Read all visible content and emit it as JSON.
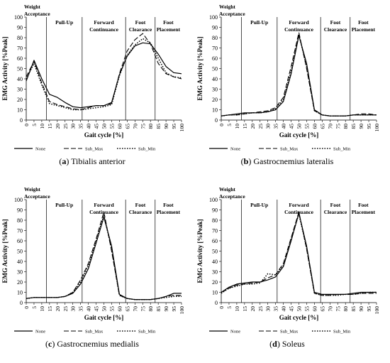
{
  "chart_data": [
    {
      "type": "line",
      "caption_letter": "a",
      "caption_text": "Tibialis anterior",
      "xlabel": "Gait cycle [%]",
      "ylabel": "EMG Activity [%Peak]",
      "xlim": [
        0,
        100
      ],
      "ylim": [
        0,
        100
      ],
      "xticks": [
        0,
        5,
        10,
        15,
        20,
        25,
        30,
        35,
        40,
        45,
        50,
        55,
        60,
        65,
        70,
        75,
        80,
        85,
        90,
        95,
        100
      ],
      "yticks": [
        0,
        10,
        20,
        30,
        40,
        50,
        60,
        70,
        80,
        90,
        100
      ],
      "phases": [
        {
          "label": [
            "Weight",
            "Acceptance"
          ],
          "start": 0,
          "end": 13
        },
        {
          "label": [
            "Pull-Up"
          ],
          "start": 13,
          "end": 36
        },
        {
          "label": [
            "Forward",
            "Continuance"
          ],
          "start": 36,
          "end": 64
        },
        {
          "label": [
            "Foot",
            "Clearance"
          ],
          "start": 64,
          "end": 83
        },
        {
          "label": [
            "Foot",
            "Placement"
          ],
          "start": 83,
          "end": 100
        }
      ],
      "x": [
        0,
        5,
        10,
        15,
        20,
        25,
        30,
        35,
        40,
        45,
        50,
        55,
        60,
        65,
        70,
        75,
        80,
        85,
        90,
        95,
        100
      ],
      "series": [
        {
          "name": "None",
          "values": [
            38,
            58,
            40,
            25,
            22,
            17,
            13,
            12,
            13,
            14,
            14,
            17,
            44,
            62,
            72,
            75,
            74,
            64,
            52,
            46,
            45
          ]
        },
        {
          "name": "Sub_Max",
          "values": [
            42,
            57,
            36,
            18,
            15,
            13,
            11,
            10,
            12,
            14,
            14,
            16,
            45,
            67,
            78,
            84,
            74,
            55,
            45,
            42,
            40
          ]
        },
        {
          "name": "Sub_Min",
          "values": [
            40,
            55,
            34,
            16,
            14,
            12,
            10,
            10,
            11,
            12,
            13,
            15,
            43,
            63,
            73,
            79,
            75,
            60,
            46,
            42,
            41
          ]
        }
      ]
    },
    {
      "type": "line",
      "caption_letter": "b",
      "caption_text": "Gastrocnemius lateralis",
      "xlabel": "Gait cycle [%]",
      "ylabel": "EMG Activity [%Peak]",
      "xlim": [
        0,
        100
      ],
      "ylim": [
        0,
        100
      ],
      "xticks": [
        0,
        5,
        10,
        15,
        20,
        25,
        30,
        35,
        40,
        45,
        50,
        55,
        60,
        65,
        70,
        75,
        80,
        85,
        90,
        95,
        100
      ],
      "yticks": [
        0,
        10,
        20,
        30,
        40,
        50,
        60,
        70,
        80,
        90,
        100
      ],
      "phases": [
        {
          "label": [
            "Weight",
            "Acceptance"
          ],
          "start": 0,
          "end": 13
        },
        {
          "label": [
            "Pull-Up"
          ],
          "start": 13,
          "end": 36
        },
        {
          "label": [
            "Forward",
            "Continuance"
          ],
          "start": 36,
          "end": 64
        },
        {
          "label": [
            "Foot",
            "Clearance"
          ],
          "start": 64,
          "end": 83
        },
        {
          "label": [
            "Foot",
            "Placement"
          ],
          "start": 83,
          "end": 100
        }
      ],
      "x": [
        0,
        5,
        10,
        15,
        20,
        25,
        30,
        35,
        40,
        45,
        50,
        55,
        60,
        65,
        70,
        75,
        80,
        85,
        90,
        95,
        100
      ],
      "series": [
        {
          "name": "None",
          "values": [
            4,
            5,
            6,
            7,
            7,
            7,
            8,
            10,
            18,
            45,
            82,
            55,
            10,
            5,
            4,
            4,
            4,
            5,
            5,
            5,
            5
          ]
        },
        {
          "name": "Sub_Max",
          "values": [
            4,
            5,
            5,
            6,
            7,
            8,
            9,
            12,
            22,
            52,
            85,
            50,
            9,
            5,
            4,
            4,
            4,
            5,
            6,
            6,
            5
          ]
        },
        {
          "name": "Sub_Min",
          "values": [
            4,
            5,
            5,
            6,
            7,
            7,
            8,
            11,
            20,
            48,
            83,
            52,
            9,
            5,
            4,
            4,
            4,
            5,
            5,
            5,
            5
          ]
        }
      ]
    },
    {
      "type": "line",
      "caption_letter": "c",
      "caption_text": "Gastrocnemius medialis",
      "xlabel": "Gait cycle [%]",
      "ylabel": "EMG Activity [%Peak]",
      "xlim": [
        0,
        100
      ],
      "ylim": [
        0,
        100
      ],
      "xticks": [
        0,
        5,
        10,
        15,
        20,
        25,
        30,
        35,
        40,
        45,
        50,
        55,
        60,
        65,
        70,
        75,
        80,
        85,
        90,
        95,
        100
      ],
      "yticks": [
        0,
        10,
        20,
        30,
        40,
        50,
        60,
        70,
        80,
        90,
        100
      ],
      "phases": [
        {
          "label": [
            "Weight",
            "Acceptance"
          ],
          "start": 0,
          "end": 13
        },
        {
          "label": [
            "Pull-Up"
          ],
          "start": 13,
          "end": 36
        },
        {
          "label": [
            "Forward",
            "Continuance"
          ],
          "start": 36,
          "end": 64
        },
        {
          "label": [
            "Foot",
            "Clearance"
          ],
          "start": 64,
          "end": 83
        },
        {
          "label": [
            "Foot",
            "Placement"
          ],
          "start": 83,
          "end": 100
        }
      ],
      "x": [
        0,
        5,
        10,
        15,
        20,
        25,
        30,
        35,
        40,
        45,
        50,
        55,
        60,
        65,
        70,
        75,
        80,
        85,
        90,
        95,
        100
      ],
      "series": [
        {
          "name": "None",
          "values": [
            4,
            5,
            5,
            5,
            5,
            6,
            9,
            18,
            33,
            58,
            83,
            55,
            8,
            4,
            3,
            3,
            3,
            4,
            6,
            9,
            9
          ]
        },
        {
          "name": "Sub_Max",
          "values": [
            4,
            5,
            5,
            5,
            5,
            6,
            10,
            22,
            38,
            62,
            88,
            50,
            7,
            4,
            3,
            3,
            3,
            4,
            6,
            7,
            7
          ]
        },
        {
          "name": "Sub_Min",
          "values": [
            4,
            5,
            5,
            5,
            5,
            6,
            10,
            20,
            36,
            60,
            85,
            52,
            7,
            4,
            3,
            3,
            3,
            4,
            5,
            6,
            6
          ]
        }
      ]
    },
    {
      "type": "line",
      "caption_letter": "d",
      "caption_text": "Soleus",
      "xlabel": "Gait cycle [%]",
      "ylabel": "EMG Activity [%Peak]",
      "xlim": [
        0,
        100
      ],
      "ylim": [
        0,
        100
      ],
      "xticks": [
        0,
        5,
        10,
        15,
        20,
        25,
        30,
        35,
        40,
        45,
        50,
        55,
        60,
        65,
        70,
        75,
        80,
        85,
        90,
        95,
        100
      ],
      "yticks": [
        0,
        10,
        20,
        30,
        40,
        50,
        60,
        70,
        80,
        90,
        100
      ],
      "phases": [
        {
          "label": [
            "Weight",
            "Acceptance"
          ],
          "start": 0,
          "end": 13
        },
        {
          "label": [
            "Pull-Up"
          ],
          "start": 13,
          "end": 36
        },
        {
          "label": [
            "Forward",
            "Continuance"
          ],
          "start": 36,
          "end": 64
        },
        {
          "label": [
            "Foot",
            "Clearance"
          ],
          "start": 64,
          "end": 83
        },
        {
          "label": [
            "Foot",
            "Placement"
          ],
          "start": 83,
          "end": 100
        }
      ],
      "x": [
        0,
        5,
        10,
        15,
        20,
        25,
        30,
        35,
        40,
        45,
        50,
        55,
        60,
        65,
        70,
        75,
        80,
        85,
        90,
        95,
        100
      ],
      "series": [
        {
          "name": "None",
          "values": [
            10,
            15,
            18,
            19,
            20,
            20,
            22,
            25,
            35,
            60,
            87,
            55,
            10,
            8,
            8,
            8,
            8,
            9,
            10,
            10,
            10
          ]
        },
        {
          "name": "Sub_Max",
          "values": [
            10,
            14,
            17,
            18,
            19,
            20,
            24,
            27,
            38,
            63,
            88,
            52,
            9,
            7,
            7,
            8,
            8,
            8,
            9,
            9,
            9
          ]
        },
        {
          "name": "Sub_Min",
          "values": [
            9,
            14,
            16,
            18,
            18,
            19,
            28,
            27,
            36,
            62,
            86,
            53,
            9,
            7,
            7,
            7,
            8,
            8,
            9,
            10,
            10
          ]
        }
      ]
    }
  ]
}
